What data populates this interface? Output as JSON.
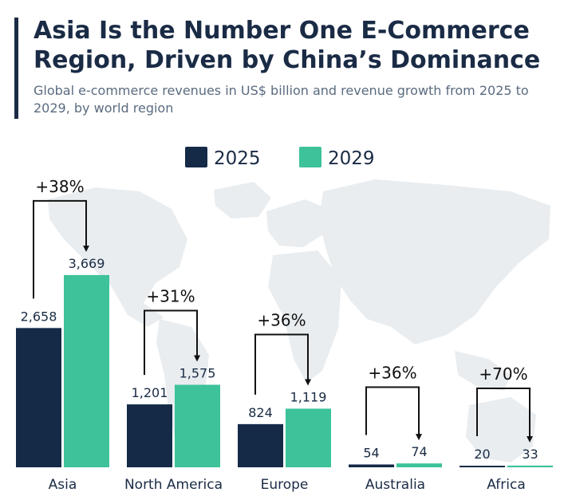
{
  "header": {
    "title": "Asia Is the Number One E-Commerce Region, Driven by China’s Dominance",
    "subtitle": "Global e-commerce revenues in US$ billion and revenue growth from 2025 to 2029, by world region"
  },
  "colors": {
    "series_2025": "#142a47",
    "series_2029": "#3dc29a",
    "text": "#1a2b45",
    "map": "#e9edf0"
  },
  "chart_data": {
    "type": "bar",
    "title": "Asia Is the Number One E-Commerce Region, Driven by China’s Dominance",
    "subtitle": "Global e-commerce revenues in US$ billion and revenue growth from 2025 to 2029, by world region",
    "legend_position": "top-center",
    "grid": false,
    "categories": [
      "Asia",
      "North America",
      "Europe",
      "Australia",
      "Africa"
    ],
    "series": [
      {
        "name": "2025",
        "values": [
          2658,
          1201,
          824,
          54,
          20
        ],
        "labels": [
          "2,658",
          "1,201",
          "824",
          "54",
          "20"
        ]
      },
      {
        "name": "2029",
        "values": [
          3669,
          1575,
          1119,
          74,
          33
        ],
        "labels": [
          "3,669",
          "1,575",
          "1,119",
          "74",
          "33"
        ]
      }
    ],
    "growth_labels": [
      "+38%",
      "+31%",
      "+36%",
      "+36%",
      "+70%"
    ],
    "ylim": [
      0,
      4200
    ],
    "xlabel": "",
    "ylabel": ""
  }
}
